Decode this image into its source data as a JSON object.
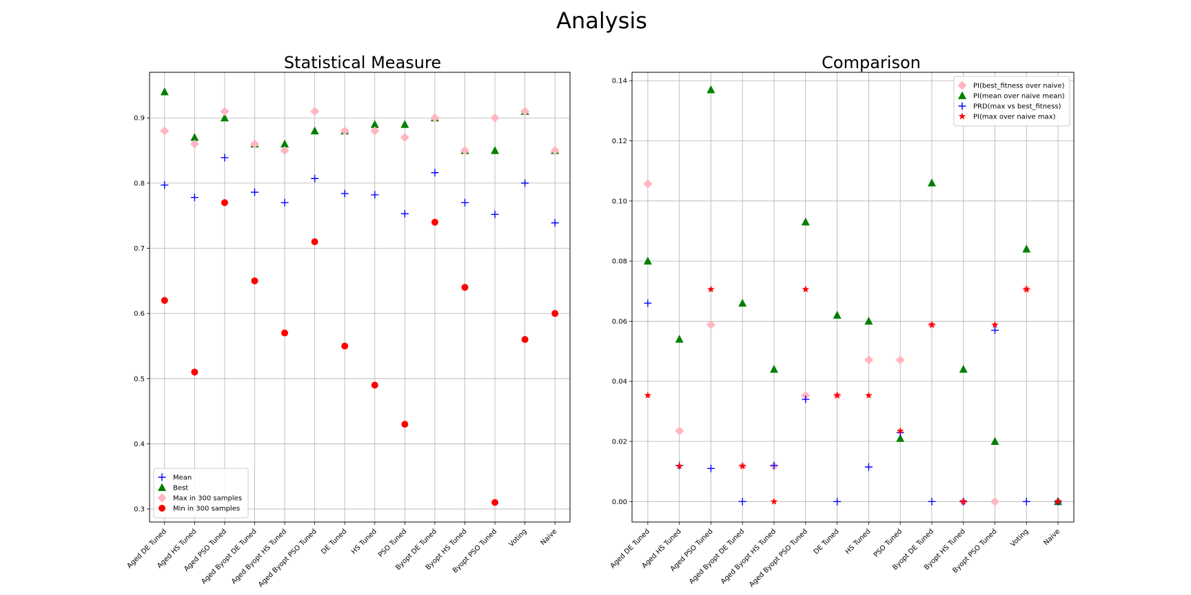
{
  "figure": {
    "suptitle": "Analysis"
  },
  "chart_data": [
    {
      "type": "scatter",
      "title": "Statistical Measure",
      "xlabel": "",
      "ylabel": "",
      "ylim": [
        0.28,
        0.97
      ],
      "yticks": [
        0.3,
        0.4,
        0.5,
        0.6,
        0.7,
        0.8,
        0.9
      ],
      "ytick_labels": [
        "0.3",
        "0.4",
        "0.5",
        "0.6",
        "0.7",
        "0.8",
        "0.9"
      ],
      "categories": [
        "Aged DE Tuned",
        "Aged HS Tuned",
        "Aged PSO Tuned",
        "Aged Byopt DE Tuned",
        "Aged Byopt HS Tuned",
        "Aged Byopt PSO Tuned",
        "DE Tuned",
        "HS Tuned",
        "PSO Tuned",
        "Byopt DE Tuned",
        "Byopt HS Tuned",
        "Byopt PSO Tuned",
        "Voting",
        "Naive"
      ],
      "grid": true,
      "legend_position": "lower-left",
      "series": [
        {
          "name": "Mean",
          "marker": "plus",
          "color": "#0000ff",
          "values": [
            0.797,
            0.778,
            0.839,
            0.786,
            0.77,
            0.807,
            0.784,
            0.782,
            0.753,
            0.816,
            0.77,
            0.752,
            0.8,
            0.739
          ]
        },
        {
          "name": "Best",
          "marker": "triangle",
          "color": "#008000",
          "values": [
            0.94,
            0.87,
            0.9,
            0.86,
            0.86,
            0.88,
            0.88,
            0.89,
            0.89,
            0.9,
            0.85,
            0.85,
            0.91,
            0.85
          ]
        },
        {
          "name": "Max in 300 samples",
          "marker": "diamond",
          "color": "#ffb6c1",
          "values": [
            0.88,
            0.86,
            0.91,
            0.86,
            0.85,
            0.91,
            0.88,
            0.88,
            0.87,
            0.9,
            0.85,
            0.9,
            0.91,
            0.85
          ]
        },
        {
          "name": "Min in 300 samples",
          "marker": "circle",
          "color": "#ff0000",
          "values": [
            0.62,
            0.51,
            0.77,
            0.65,
            0.57,
            0.71,
            0.55,
            0.49,
            0.43,
            0.74,
            0.64,
            0.31,
            0.56,
            0.6
          ]
        }
      ]
    },
    {
      "type": "scatter",
      "title": "Comparison",
      "xlabel": "",
      "ylabel": "",
      "ylim": [
        -0.0068,
        0.1428
      ],
      "yticks": [
        0.0,
        0.02,
        0.04,
        0.06,
        0.08,
        0.1,
        0.12,
        0.14
      ],
      "ytick_labels": [
        "0.00",
        "0.02",
        "0.04",
        "0.06",
        "0.08",
        "0.10",
        "0.12",
        "0.14"
      ],
      "categories": [
        "Aged DE Tuned",
        "Aged HS Tuned",
        "Aged PSO Tuned",
        "Aged Byopt DE Tuned",
        "Aged Byopt HS Tuned",
        "Aged Byopt PSO Tuned",
        "DE Tuned",
        "HS Tuned",
        "PSO Tuned",
        "Byopt DE Tuned",
        "Byopt HS Tuned",
        "Byopt PSO Tuned",
        "Voting",
        "Naive"
      ],
      "grid": true,
      "legend_position": "top-right",
      "series": [
        {
          "name": "PI(best_fitness over naive)",
          "marker": "diamond",
          "color": "#ffb6c1",
          "values": [
            0.1057,
            0.0235,
            0.0588,
            0.0118,
            0.0118,
            0.0353,
            0.0353,
            0.0471,
            0.0471,
            0.0588,
            0.0,
            0.0,
            0.0706,
            0.0
          ]
        },
        {
          "name": "PI(mean over naive mean)",
          "marker": "triangle",
          "color": "#008000",
          "values": [
            0.08,
            0.054,
            0.137,
            0.066,
            0.044,
            0.093,
            0.062,
            0.06,
            0.021,
            0.106,
            0.044,
            0.02,
            0.084,
            0.0
          ]
        },
        {
          "name": "PRD(max vs best_fitness)",
          "marker": "plus",
          "color": "#0000ff",
          "values": [
            0.066,
            0.012,
            0.011,
            0.0,
            0.012,
            0.034,
            0.0,
            0.0115,
            0.023,
            0.0,
            0.0,
            0.057,
            0.0,
            0.0
          ]
        },
        {
          "name": "PI(max over naive max)",
          "marker": "star",
          "color": "#ff0000",
          "values": [
            0.0353,
            0.0118,
            0.0706,
            0.0118,
            0.0,
            0.0706,
            0.0353,
            0.0353,
            0.0235,
            0.0588,
            0.0,
            0.0588,
            0.0706,
            0.0
          ]
        }
      ]
    }
  ]
}
